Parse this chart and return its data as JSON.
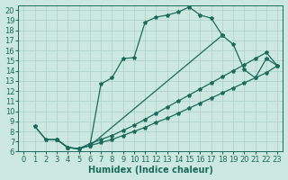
{
  "xlabel": "Humidex (Indice chaleur)",
  "ylabel": "",
  "bg_color": "#cce8e0",
  "line_color": "#1a6b5a",
  "grid_color": "#aacfc8",
  "xlim": [
    -0.5,
    23.5
  ],
  "ylim": [
    6,
    20.5
  ],
  "xticks": [
    0,
    1,
    2,
    3,
    4,
    5,
    6,
    7,
    8,
    9,
    10,
    11,
    12,
    13,
    14,
    15,
    16,
    17,
    18,
    19,
    20,
    21,
    22,
    23
  ],
  "yticks": [
    6,
    7,
    8,
    9,
    10,
    11,
    12,
    13,
    14,
    15,
    16,
    17,
    18,
    19,
    20
  ],
  "lines": [
    {
      "x": [
        1,
        2,
        3,
        4,
        5,
        6,
        7,
        8,
        9,
        10,
        11,
        12,
        13,
        14,
        15,
        16,
        17,
        18
      ],
      "y": [
        8.5,
        7.2,
        7.2,
        6.4,
        6.3,
        6.6,
        12.7,
        13.3,
        15.2,
        15.3,
        18.8,
        19.3,
        19.5,
        19.8,
        20.3,
        19.5,
        19.2,
        17.5
      ]
    },
    {
      "x": [
        1,
        2,
        3,
        4,
        5,
        6,
        18,
        19,
        20,
        21,
        22,
        23
      ],
      "y": [
        8.5,
        7.2,
        7.2,
        6.4,
        6.3,
        6.6,
        17.5,
        16.6,
        14.1,
        13.3,
        15.2,
        14.5
      ]
    },
    {
      "x": [
        3,
        4,
        5,
        6,
        7,
        8,
        9,
        10,
        11,
        12,
        13,
        14,
        15,
        16,
        17,
        18,
        19,
        20,
        21,
        22,
        23
      ],
      "y": [
        7.2,
        6.4,
        6.3,
        6.8,
        7.2,
        7.6,
        8.1,
        8.6,
        9.2,
        9.8,
        10.4,
        11.0,
        11.6,
        12.2,
        12.8,
        13.4,
        14.0,
        14.6,
        15.2,
        15.8,
        14.5
      ]
    },
    {
      "x": [
        3,
        4,
        5,
        6,
        7,
        8,
        9,
        10,
        11,
        12,
        13,
        14,
        15,
        16,
        17,
        18,
        19,
        20,
        21,
        22,
        23
      ],
      "y": [
        7.2,
        6.4,
        6.3,
        6.6,
        6.9,
        7.2,
        7.6,
        8.0,
        8.4,
        8.9,
        9.3,
        9.8,
        10.3,
        10.8,
        11.3,
        11.8,
        12.3,
        12.8,
        13.3,
        13.8,
        14.5
      ]
    }
  ],
  "marker": "*",
  "markersize": 3,
  "linewidth": 0.9,
  "tick_fontsize": 6,
  "xlabel_fontsize": 7
}
